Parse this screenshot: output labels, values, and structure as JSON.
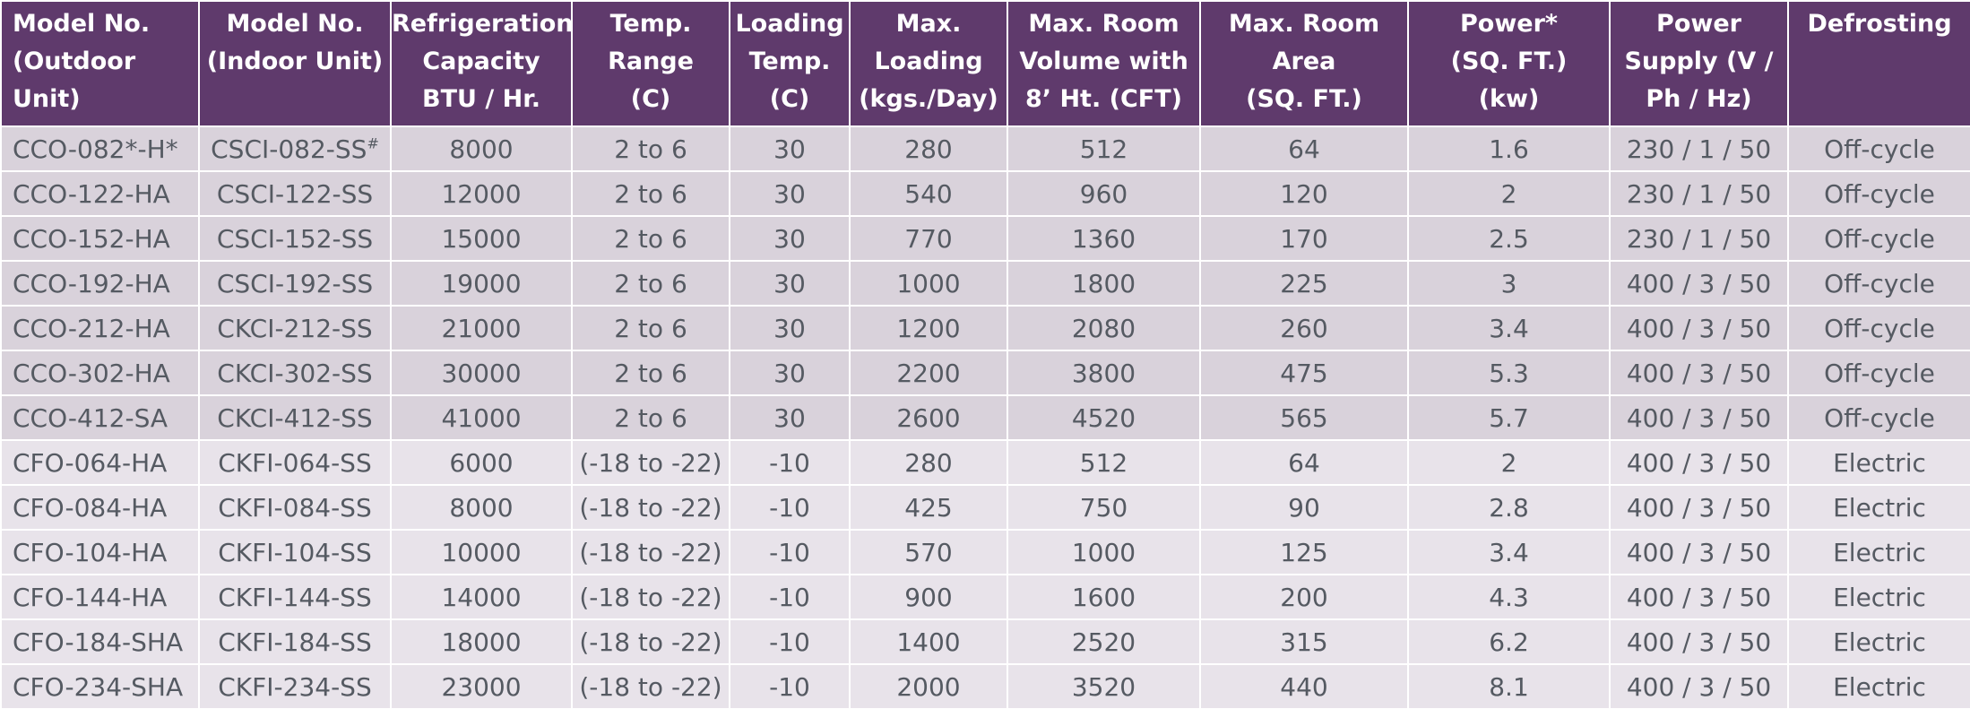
{
  "table": {
    "headers": [
      [
        "Model No.",
        "(Outdoor",
        "Unit)"
      ],
      [
        "Model No.",
        "(Indoor Unit)"
      ],
      [
        "Refrigeration",
        "Capacity",
        "BTU / Hr."
      ],
      [
        "Temp.",
        "Range",
        "(C)"
      ],
      [
        "Loading",
        "Temp.",
        "(C)"
      ],
      [
        "Max.",
        "Loading",
        "(kgs./Day)"
      ],
      [
        "Max. Room",
        "Volume with",
        "8’ Ht. (CFT)"
      ],
      [
        "Max. Room",
        "Area",
        "(SQ. FT.)"
      ],
      [
        "Power*",
        "(SQ. FT.)",
        "(kw)"
      ],
      [
        "Power",
        "Supply (V /",
        "Ph / Hz)"
      ],
      [
        "Defrosting"
      ]
    ],
    "first_row_indoor_base": "CSCI-082-SS",
    "first_row_indoor_mark": "#",
    "rows": [
      [
        "CCO-082*-H*",
        "CSCI-082-SS#",
        "8000",
        "2 to 6",
        "30",
        "280",
        "512",
        "64",
        "1.6",
        "230 / 1 / 50",
        "Off-cycle"
      ],
      [
        "CCO-122-HA",
        "CSCI-122-SS",
        "12000",
        "2 to 6",
        "30",
        "540",
        "960",
        "120",
        "2",
        "230 / 1 / 50",
        "Off-cycle"
      ],
      [
        "CCO-152-HA",
        "CSCI-152-SS",
        "15000",
        "2 to 6",
        "30",
        "770",
        "1360",
        "170",
        "2.5",
        "230 / 1 / 50",
        "Off-cycle"
      ],
      [
        "CCO-192-HA",
        "CSCI-192-SS",
        "19000",
        "2 to 6",
        "30",
        "1000",
        "1800",
        "225",
        "3",
        "400 / 3 / 50",
        "Off-cycle"
      ],
      [
        "CCO-212-HA",
        "CKCI-212-SS",
        "21000",
        "2 to 6",
        "30",
        "1200",
        "2080",
        "260",
        "3.4",
        "400 / 3 / 50",
        "Off-cycle"
      ],
      [
        "CCO-302-HA",
        "CKCI-302-SS",
        "30000",
        "2 to 6",
        "30",
        "2200",
        "3800",
        "475",
        "5.3",
        "400 / 3 / 50",
        "Off-cycle"
      ],
      [
        "CCO-412-SA",
        "CKCI-412-SS",
        "41000",
        "2 to 6",
        "30",
        "2600",
        "4520",
        "565",
        "5.7",
        "400 / 3 / 50",
        "Off-cycle"
      ],
      [
        "CFO-064-HA",
        "CKFI-064-SS",
        "6000",
        "(-18 to -22)",
        "-10",
        "280",
        "512",
        "64",
        "2",
        "400 / 3 / 50",
        "Electric"
      ],
      [
        "CFO-084-HA",
        "CKFI-084-SS",
        "8000",
        "(-18 to -22)",
        "-10",
        "425",
        "750",
        "90",
        "2.8",
        "400 / 3 / 50",
        "Electric"
      ],
      [
        "CFO-104-HA",
        "CKFI-104-SS",
        "10000",
        "(-18 to -22)",
        "-10",
        "570",
        "1000",
        "125",
        "3.4",
        "400 / 3 / 50",
        "Electric"
      ],
      [
        "CFO-144-HA",
        "CKFI-144-SS",
        "14000",
        "(-18 to -22)",
        "-10",
        "900",
        "1600",
        "200",
        "4.3",
        "400 / 3 / 50",
        "Electric"
      ],
      [
        "CFO-184-SHA",
        "CKFI-184-SS",
        "18000",
        "(-18 to -22)",
        "-10",
        "1400",
        "2520",
        "315",
        "6.2",
        "400 / 3 / 50",
        "Electric"
      ],
      [
        "CFO-234-SHA",
        "CKFI-234-SS",
        "23000",
        "(-18 to -22)",
        "-10",
        "2000",
        "3520",
        "440",
        "8.1",
        "400 / 3 / 50",
        "Electric"
      ]
    ]
  },
  "colors": {
    "header_bg": "#5f3a6c",
    "header_text": "#ffffff",
    "cooler_row_bg": "#d9d2db",
    "freezer_row_bg": "#e8e3ea",
    "body_text": "#555a62"
  }
}
